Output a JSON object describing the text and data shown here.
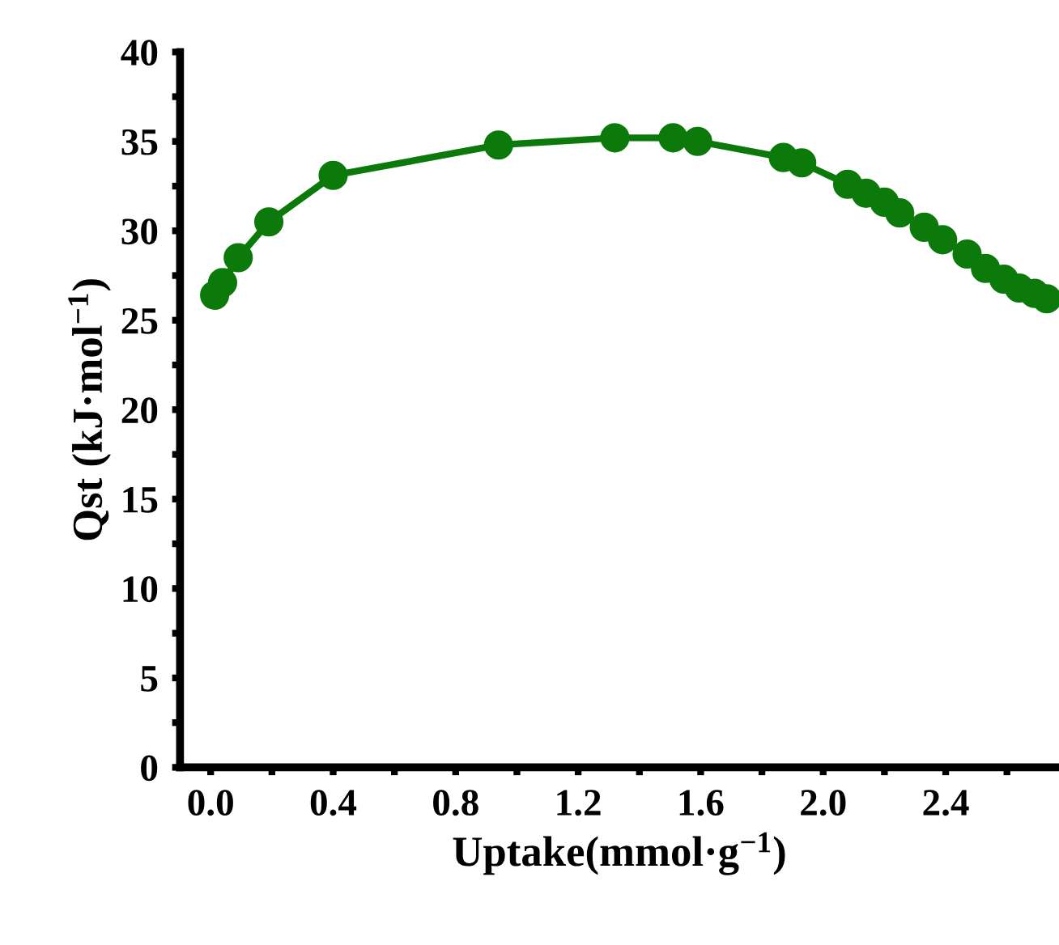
{
  "chart_data": {
    "type": "line",
    "xlabel": "Uptake(mmol·g$^{−1}$)",
    "ylabel": "Qst (kJ·mol$^{−1}$)",
    "series": [
      {
        "color": "#0b7a0b",
        "x": [
          0.013,
          0.039,
          0.09,
          0.19,
          0.4,
          0.94,
          1.32,
          1.51,
          1.59,
          1.87,
          1.93,
          2.08,
          2.14,
          2.2,
          2.25,
          2.33,
          2.39,
          2.47,
          2.53,
          2.59,
          2.64,
          2.69,
          2.73
        ],
        "values": [
          26.4,
          27.1,
          28.5,
          30.5,
          33.1,
          34.8,
          35.2,
          35.2,
          35.0,
          34.1,
          33.8,
          32.6,
          32.1,
          31.6,
          31.0,
          30.2,
          29.5,
          28.7,
          27.9,
          27.3,
          26.8,
          26.5,
          26.2
        ]
      }
    ],
    "marker": "circle",
    "line_style": "solid",
    "grid": false,
    "legend": false,
    "xlim": [
      -0.1,
      2.77
    ],
    "ylim": [
      0,
      40
    ],
    "xticks": [
      {
        "value": 0.0,
        "label": "0.0"
      },
      {
        "value": 0.2,
        "label": null
      },
      {
        "value": 0.4,
        "label": "0.4"
      },
      {
        "value": 0.6,
        "label": null
      },
      {
        "value": 0.8,
        "label": "0.8"
      },
      {
        "value": 1.0,
        "label": null
      },
      {
        "value": 1.2,
        "label": "1.2"
      },
      {
        "value": 1.4,
        "label": null
      },
      {
        "value": 1.6,
        "label": "1.6"
      },
      {
        "value": 1.8,
        "label": null
      },
      {
        "value": 2.0,
        "label": "2.0"
      },
      {
        "value": 2.2,
        "label": null
      },
      {
        "value": 2.4,
        "label": "2.4"
      },
      {
        "value": 2.6,
        "label": null
      }
    ],
    "yticks": [
      0,
      {
        "value": 2.5,
        "label": null
      },
      5,
      {
        "value": 7.5,
        "label": null
      },
      10,
      {
        "value": 12.5,
        "label": null
      },
      15,
      {
        "value": 17.5,
        "label": null
      },
      20,
      {
        "value": 22.5,
        "label": null
      },
      25,
      {
        "value": 27.5,
        "label": null
      },
      30,
      {
        "value": 32.5,
        "label": null
      },
      35,
      {
        "value": 37.5,
        "label": null
      },
      40
    ]
  }
}
